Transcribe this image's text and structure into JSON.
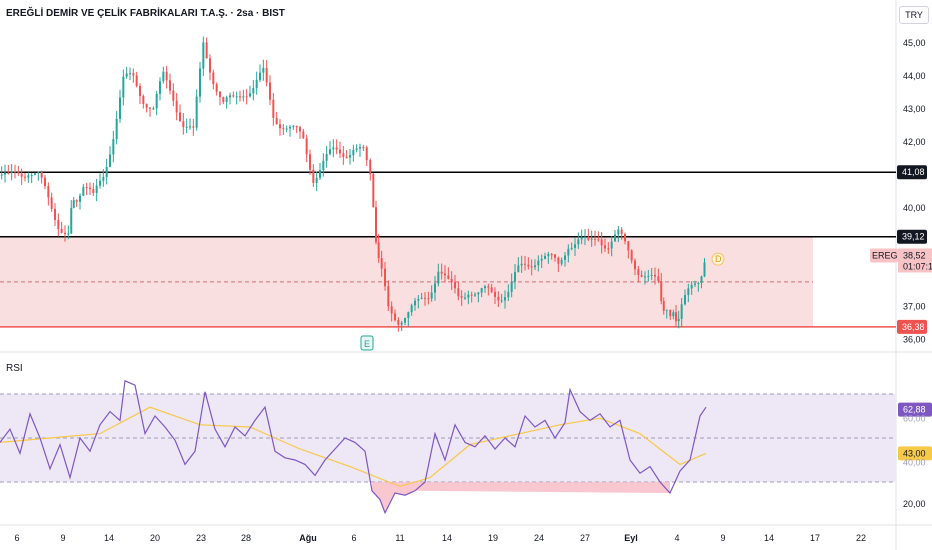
{
  "header": {
    "title": "EREĞLİ DEMİR VE ÇELİK FABRİKALARI T.A.Ş. · 2sa · BIST",
    "currency": "TRY"
  },
  "rsi_panel": {
    "label": "RSI"
  },
  "colors": {
    "up": "#26a69a",
    "down": "#ef5350",
    "zone_fill": "#f9d7d9",
    "rsi_line": "#7e57c2",
    "rsi_ma": "#f7c948",
    "rsi_band": "#ede7f6"
  },
  "chart_data": [
    {
      "type": "candlestick",
      "title": "EREĞLİ DEMİR VE ÇELİK FABRİKALARI T.A.Ş. · 2sa · BIST",
      "ylim": [
        35.8,
        45.4
      ],
      "y_ticks": [
        "45,00",
        "44,00",
        "43,00",
        "42,00",
        "40,00",
        "37,00",
        "36,00"
      ],
      "x_ticks": [
        "6",
        "9",
        "14",
        "20",
        "23",
        "28",
        "Ağu",
        "6",
        "11",
        "14",
        "19",
        "24",
        "27",
        "Eyl",
        "4",
        "9",
        "14",
        "17",
        "22"
      ],
      "price_path": [
        [
          0,
          41.0
        ],
        [
          10,
          40.8
        ],
        [
          20,
          41.1
        ],
        [
          30,
          41.2
        ],
        [
          40,
          40.9
        ],
        [
          50,
          40.2
        ],
        [
          60,
          39.6
        ],
        [
          70,
          39.2
        ],
        [
          75,
          40.3
        ],
        [
          85,
          40.7
        ],
        [
          95,
          40.2
        ],
        [
          105,
          41.0
        ],
        [
          115,
          42.3
        ],
        [
          125,
          43.8
        ],
        [
          135,
          43.9
        ],
        [
          145,
          43.4
        ],
        [
          155,
          43.0
        ],
        [
          165,
          43.9
        ],
        [
          175,
          43.4
        ],
        [
          185,
          42.6
        ],
        [
          195,
          42.2
        ],
        [
          205,
          45.0
        ],
        [
          215,
          44.0
        ],
        [
          225,
          43.1
        ],
        [
          235,
          43.2
        ],
        [
          245,
          43.6
        ],
        [
          255,
          43.7
        ],
        [
          265,
          44.0
        ],
        [
          275,
          42.8
        ],
        [
          285,
          42.6
        ],
        [
          295,
          42.3
        ],
        [
          305,
          42.0
        ],
        [
          315,
          41.0
        ],
        [
          325,
          41.4
        ],
        [
          335,
          41.6
        ],
        [
          345,
          41.7
        ],
        [
          355,
          41.9
        ],
        [
          365,
          41.6
        ],
        [
          372,
          40.8
        ],
        [
          380,
          38.4
        ],
        [
          390,
          36.9
        ],
        [
          400,
          36.7
        ],
        [
          410,
          36.8
        ],
        [
          420,
          37.0
        ],
        [
          430,
          37.4
        ],
        [
          440,
          38.2
        ],
        [
          450,
          37.6
        ],
        [
          460,
          37.3
        ],
        [
          470,
          37.6
        ],
        [
          480,
          37.3
        ],
        [
          490,
          37.4
        ],
        [
          500,
          37.4
        ],
        [
          510,
          37.5
        ],
        [
          520,
          38.0
        ],
        [
          530,
          38.3
        ],
        [
          540,
          38.6
        ],
        [
          550,
          38.4
        ],
        [
          560,
          38.2
        ],
        [
          570,
          39.0
        ],
        [
          580,
          39.0
        ],
        [
          590,
          38.8
        ],
        [
          600,
          39.2
        ],
        [
          610,
          38.9
        ],
        [
          620,
          39.1
        ],
        [
          630,
          38.7
        ],
        [
          640,
          38.2
        ],
        [
          650,
          37.8
        ],
        [
          660,
          37.6
        ],
        [
          665,
          37.0
        ],
        [
          672,
          36.5
        ],
        [
          680,
          36.8
        ],
        [
          690,
          37.3
        ],
        [
          700,
          37.8
        ],
        [
          706,
          38.5
        ]
      ],
      "last_close": "38,52",
      "price_labels": [
        {
          "text": "41,08",
          "value": 41.08,
          "kind": "line"
        },
        {
          "text": "39,12",
          "value": 39.12,
          "kind": "line"
        },
        {
          "text": "36,38",
          "value": 36.38,
          "kind": "support"
        }
      ],
      "symbol_tag": "EREGL",
      "bar_countdown": "01:07:1",
      "dividend_marker": "D",
      "earnings_marker": "E",
      "highlight_zone": [
        36.38,
        39.12
      ]
    },
    {
      "type": "line",
      "title": "RSI",
      "ylim": [
        15,
        80
      ],
      "bands": [
        30,
        70
      ],
      "mid": 50,
      "y_ticks": [
        "20,00"
      ],
      "rsi_path": [
        [
          0,
          48
        ],
        [
          10,
          54
        ],
        [
          20,
          43
        ],
        [
          30,
          61
        ],
        [
          40,
          50
        ],
        [
          50,
          36
        ],
        [
          60,
          47
        ],
        [
          70,
          32
        ],
        [
          80,
          50
        ],
        [
          90,
          44
        ],
        [
          100,
          56
        ],
        [
          110,
          62
        ],
        [
          120,
          58
        ],
        [
          125,
          76
        ],
        [
          135,
          74
        ],
        [
          145,
          52
        ],
        [
          155,
          60
        ],
        [
          165,
          55
        ],
        [
          175,
          49
        ],
        [
          185,
          38
        ],
        [
          195,
          44
        ],
        [
          205,
          71
        ],
        [
          215,
          54
        ],
        [
          225,
          46
        ],
        [
          235,
          55
        ],
        [
          245,
          51
        ],
        [
          255,
          58
        ],
        [
          265,
          64
        ],
        [
          275,
          44
        ],
        [
          285,
          41
        ],
        [
          295,
          40
        ],
        [
          305,
          38
        ],
        [
          315,
          33
        ],
        [
          325,
          40
        ],
        [
          335,
          45
        ],
        [
          345,
          50
        ],
        [
          355,
          48
        ],
        [
          365,
          44
        ],
        [
          372,
          26
        ],
        [
          380,
          22
        ],
        [
          385,
          16
        ],
        [
          395,
          25
        ],
        [
          405,
          24
        ],
        [
          415,
          26
        ],
        [
          425,
          30
        ],
        [
          435,
          52
        ],
        [
          445,
          40
        ],
        [
          455,
          56
        ],
        [
          465,
          48
        ],
        [
          475,
          46
        ],
        [
          485,
          51
        ],
        [
          495,
          45
        ],
        [
          505,
          50
        ],
        [
          515,
          46
        ],
        [
          525,
          60
        ],
        [
          535,
          55
        ],
        [
          545,
          58
        ],
        [
          555,
          50
        ],
        [
          565,
          57
        ],
        [
          570,
          72
        ],
        [
          580,
          62
        ],
        [
          590,
          58
        ],
        [
          600,
          61
        ],
        [
          610,
          55
        ],
        [
          620,
          58
        ],
        [
          630,
          40
        ],
        [
          640,
          34
        ],
        [
          650,
          37
        ],
        [
          660,
          30
        ],
        [
          670,
          25
        ],
        [
          680,
          35
        ],
        [
          690,
          40
        ],
        [
          700,
          60
        ],
        [
          706,
          64
        ]
      ],
      "ma_path": [
        [
          0,
          48
        ],
        [
          50,
          50
        ],
        [
          100,
          52
        ],
        [
          150,
          64
        ],
        [
          200,
          56
        ],
        [
          250,
          55
        ],
        [
          300,
          45
        ],
        [
          350,
          37
        ],
        [
          400,
          28
        ],
        [
          430,
          32
        ],
        [
          470,
          47
        ],
        [
          520,
          52
        ],
        [
          560,
          56
        ],
        [
          600,
          59
        ],
        [
          640,
          52
        ],
        [
          680,
          38
        ],
        [
          706,
          43
        ]
      ],
      "current_label": "62,88",
      "ma_label": "43,00",
      "ma_label_sub": "40,00",
      "band_label_sub": "60,00"
    }
  ]
}
